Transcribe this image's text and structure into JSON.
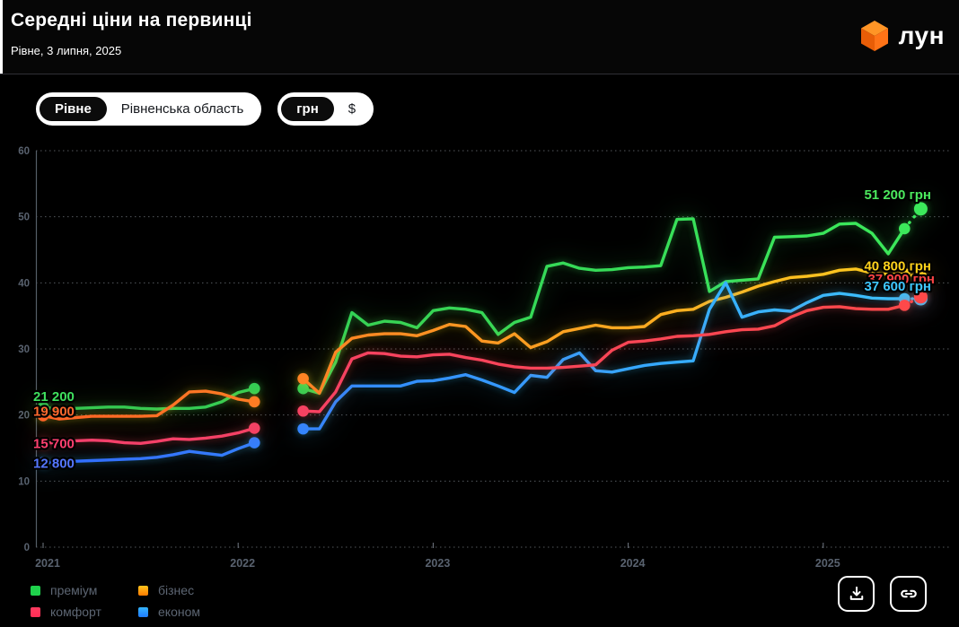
{
  "header": {
    "title": "Середні ціни на первинці",
    "subtitle": "Рівне, 3 липня, 2025",
    "logo_text": "лун"
  },
  "controls": {
    "location_toggle": {
      "options": [
        "Рівне",
        "Рівненська область"
      ],
      "selected": "Рівне"
    },
    "currency_toggle": {
      "options": [
        "грн",
        "$"
      ],
      "selected": "грн"
    }
  },
  "chart_data": {
    "type": "line",
    "x_start_month": "2021-01",
    "x_months_total": 55,
    "gap_month_indices": [
      14,
      15
    ],
    "x_ticks": [
      "2021",
      "2022",
      "2023",
      "2024",
      "2025"
    ],
    "y_ticks": [
      0,
      10,
      20,
      30,
      40,
      50,
      60
    ],
    "ylim": [
      0,
      60
    ],
    "y_unit_thousands_uah": true,
    "grid": "dotted-horizontal",
    "dashed_tail_last_segment": true,
    "series": [
      {
        "name": "преміум",
        "key": "premium",
        "color_start": "#2dc653",
        "color_end": "#3ce95b",
        "values": [
          21.2,
          20.8,
          21.0,
          21.1,
          21.2,
          21.2,
          21.0,
          20.9,
          21.0,
          21.0,
          21.2,
          22.0,
          23.4,
          24.0,
          null,
          null,
          24.0,
          23.3,
          28.0,
          35.5,
          33.6,
          34.2,
          34.0,
          33.2,
          35.8,
          36.2,
          36.0,
          35.5,
          32.2,
          34.0,
          34.8,
          42.5,
          43.0,
          42.2,
          41.9,
          42.0,
          42.3,
          42.4,
          42.6,
          49.6,
          49.7,
          38.7,
          40.2,
          40.4,
          40.6,
          46.9,
          47.0,
          47.1,
          47.5,
          48.9,
          49.0,
          47.5,
          44.4,
          48.2,
          51.2
        ]
      },
      {
        "name": "бізнес",
        "key": "biznes",
        "color_start": "#ff6326",
        "color_end": "#ffd01e",
        "values": [
          19.9,
          19.4,
          19.6,
          19.8,
          19.8,
          19.8,
          19.8,
          19.9,
          21.5,
          23.5,
          23.6,
          23.2,
          22.4,
          22.0,
          null,
          null,
          25.5,
          23.3,
          29.5,
          31.6,
          32.1,
          32.3,
          32.3,
          32.0,
          32.8,
          33.7,
          33.4,
          31.2,
          30.9,
          32.3,
          30.2,
          31.1,
          32.6,
          33.1,
          33.6,
          33.2,
          33.2,
          33.4,
          35.2,
          35.8,
          36.0,
          37.2,
          37.8,
          38.6,
          39.5,
          40.2,
          40.8,
          41.0,
          41.3,
          41.9,
          42.1,
          41.5,
          41.3,
          41.4,
          40.8
        ]
      },
      {
        "name": "економ",
        "key": "ekonom",
        "color_start": "#2f6bff",
        "color_end": "#38c6ff",
        "values": [
          12.8,
          12.9,
          13.0,
          13.1,
          13.2,
          13.3,
          13.4,
          13.6,
          14.0,
          14.5,
          14.2,
          13.9,
          14.9,
          15.8,
          null,
          null,
          17.9,
          17.9,
          22.0,
          24.4,
          24.4,
          24.4,
          24.4,
          25.1,
          25.2,
          25.6,
          26.1,
          25.3,
          24.4,
          23.4,
          26.0,
          25.7,
          28.4,
          29.4,
          26.7,
          26.5,
          27.0,
          27.5,
          27.8,
          28.0,
          28.2,
          36.0,
          40.0,
          34.8,
          35.6,
          35.9,
          35.7,
          37.0,
          38.1,
          38.4,
          38.1,
          37.7,
          37.6,
          37.6,
          37.6
        ]
      },
      {
        "name": "комфорт",
        "key": "komfort",
        "color_start": "#f23f6d",
        "color_end": "#ff4949",
        "values": [
          15.7,
          15.9,
          16.1,
          16.2,
          16.1,
          15.8,
          15.7,
          16.0,
          16.4,
          16.3,
          16.5,
          16.8,
          17.3,
          18.0,
          null,
          null,
          20.6,
          20.5,
          23.5,
          28.5,
          29.4,
          29.3,
          28.9,
          28.8,
          29.1,
          29.2,
          28.7,
          28.3,
          27.7,
          27.3,
          27.1,
          27.1,
          27.2,
          27.4,
          27.6,
          29.8,
          31.0,
          31.2,
          31.5,
          31.9,
          32.0,
          32.2,
          32.6,
          32.9,
          33.0,
          33.5,
          34.8,
          35.8,
          36.3,
          36.4,
          36.1,
          36.0,
          36.0,
          36.6,
          37.9
        ]
      }
    ],
    "start_labels": [
      {
        "series": "преміум",
        "text": "21 200",
        "color": "#3fe05e"
      },
      {
        "series": "бізнес",
        "text": "19 900",
        "color": "#ff6a2e"
      },
      {
        "series": "комфорт",
        "text": "15 700",
        "color": "#ff4070"
      },
      {
        "series": "економ",
        "text": "12 800",
        "color": "#5577ff"
      }
    ],
    "end_labels": [
      {
        "series": "комфорт",
        "text": "37 900 грн",
        "color": "#ff4545",
        "occluded": true
      },
      {
        "series": "преміум",
        "text": "51 200 грн",
        "color": "#4ce95e"
      },
      {
        "series": "бізнес",
        "text": "40 800 грн",
        "color": "#ffd21c"
      },
      {
        "series": "економ",
        "text": "37 600 грн",
        "color": "#3fc8ff"
      }
    ]
  },
  "legend": [
    {
      "label": "преміум",
      "colors": [
        "#1fd24c",
        "#1fd24c"
      ]
    },
    {
      "label": "бізнес",
      "colors": [
        "#ffc41c",
        "#ff7a00"
      ]
    },
    {
      "label": "комфорт",
      "colors": [
        "#ff3b5f",
        "#ff2d55"
      ]
    },
    {
      "label": "економ",
      "colors": [
        "#35b5ff",
        "#1f7bff"
      ]
    }
  ],
  "actions": [
    {
      "icon": "download-icon"
    },
    {
      "icon": "link-icon"
    }
  ]
}
